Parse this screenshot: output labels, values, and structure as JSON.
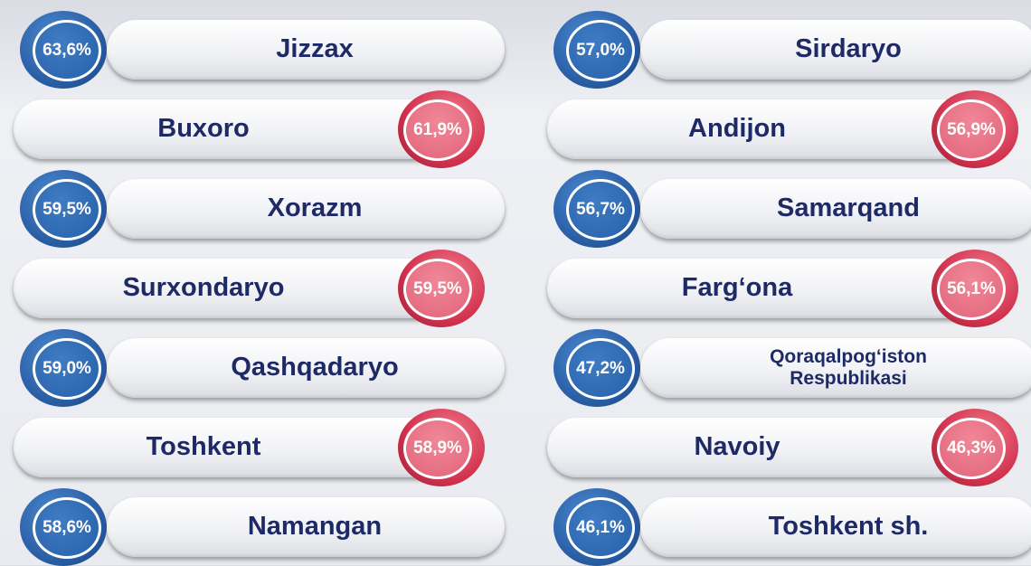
{
  "columns": [
    [
      {
        "name": "Jizzax",
        "value": "63,6%"
      },
      {
        "name": "Buxoro",
        "value": "61,9%"
      },
      {
        "name": "Xorazm",
        "value": "59,5%"
      },
      {
        "name": "Surxondaryo",
        "value": "59,5%"
      },
      {
        "name": "Qashqadaryo",
        "value": "59,0%"
      },
      {
        "name": "Toshkent",
        "value": "58,9%"
      },
      {
        "name": "Namangan",
        "value": "58,6%"
      }
    ],
    [
      {
        "name": "Sirdaryo",
        "value": "57,0%"
      },
      {
        "name": "Andijon",
        "value": "56,9%"
      },
      {
        "name": "Samarqand",
        "value": "56,7%"
      },
      {
        "name": "Farg‘ona",
        "value": "56,1%"
      },
      {
        "name": "Qoraqalpog‘iston Respublikasi",
        "value": "47,2%"
      },
      {
        "name": "Navoiy",
        "value": "46,3%"
      },
      {
        "name": "Toshkent sh.",
        "value": "46,1%"
      }
    ]
  ]
}
